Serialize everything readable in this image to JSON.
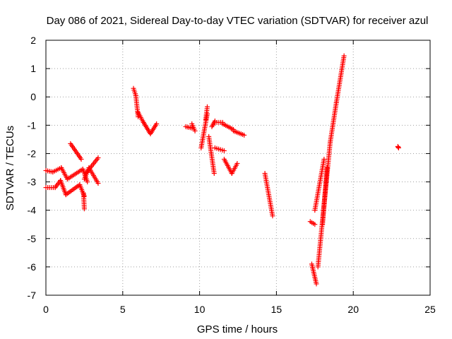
{
  "chart_data": {
    "type": "scatter",
    "title": "Day 086 of 2021, Sidereal Day-to-day VTEC variation (SDTVAR) for receiver azul",
    "xlabel": "GPS time / hours",
    "ylabel": "SDTVAR / TECUs",
    "xlim": [
      0,
      25
    ],
    "ylim": [
      -7,
      2
    ],
    "xticks": [
      0,
      5,
      10,
      15,
      20,
      25
    ],
    "yticks": [
      -7,
      -6,
      -5,
      -4,
      -3,
      -2,
      -1,
      0,
      1,
      2
    ],
    "grid": true,
    "marker": "+",
    "color": "#ff0000",
    "segments": [
      {
        "x0": 0.0,
        "x1": 0.45,
        "y0": -2.6,
        "y1": -2.65
      },
      {
        "x0": 0.45,
        "x1": 1.0,
        "y0": -2.65,
        "y1": -2.5
      },
      {
        "x0": 1.0,
        "x1": 1.4,
        "y0": -2.5,
        "y1": -2.9
      },
      {
        "x0": 1.4,
        "x1": 2.4,
        "y0": -2.9,
        "y1": -2.55
      },
      {
        "x0": 2.4,
        "x1": 2.7,
        "y0": -2.55,
        "y1": -3.0
      },
      {
        "x0": 0.0,
        "x1": 0.6,
        "y0": -3.2,
        "y1": -3.2
      },
      {
        "x0": 0.6,
        "x1": 0.95,
        "y0": -3.2,
        "y1": -2.95
      },
      {
        "x0": 0.95,
        "x1": 1.3,
        "y0": -2.95,
        "y1": -3.45
      },
      {
        "x0": 1.3,
        "x1": 2.2,
        "y0": -3.45,
        "y1": -3.1
      },
      {
        "x0": 2.2,
        "x1": 2.5,
        "y0": -3.1,
        "y1": -3.5
      },
      {
        "x0": 2.45,
        "x1": 2.5,
        "y0": -3.4,
        "y1": -3.95
      },
      {
        "x0": 1.6,
        "x1": 2.3,
        "y0": -1.65,
        "y1": -2.2
      },
      {
        "x0": 2.5,
        "x1": 2.8,
        "y0": -2.9,
        "y1": -2.5
      },
      {
        "x0": 2.6,
        "x1": 3.4,
        "y0": -2.7,
        "y1": -2.15
      },
      {
        "x0": 2.8,
        "x1": 3.4,
        "y0": -2.5,
        "y1": -3.05
      },
      {
        "x0": 5.7,
        "x1": 5.85,
        "y0": 0.3,
        "y1": 0.05
      },
      {
        "x0": 5.85,
        "x1": 6.0,
        "y0": 0.05,
        "y1": -0.7
      },
      {
        "x0": 6.0,
        "x1": 6.35,
        "y0": -0.55,
        "y1": -0.9
      },
      {
        "x0": 6.35,
        "x1": 6.8,
        "y0": -0.9,
        "y1": -1.3
      },
      {
        "x0": 6.8,
        "x1": 7.2,
        "y0": -1.3,
        "y1": -0.95
      },
      {
        "x0": 9.1,
        "x1": 9.5,
        "y0": -1.05,
        "y1": -1.1
      },
      {
        "x0": 9.5,
        "x1": 9.7,
        "y0": -0.95,
        "y1": -1.2
      },
      {
        "x0": 10.1,
        "x1": 10.5,
        "y0": -1.8,
        "y1": -0.6
      },
      {
        "x0": 10.4,
        "x1": 10.5,
        "y0": -0.8,
        "y1": -0.35
      },
      {
        "x0": 10.6,
        "x1": 10.95,
        "y0": -1.4,
        "y1": -2.7
      },
      {
        "x0": 10.8,
        "x1": 11.0,
        "y0": -1.05,
        "y1": -0.85
      },
      {
        "x0": 11.0,
        "x1": 11.5,
        "y0": -0.9,
        "y1": -0.9
      },
      {
        "x0": 11.5,
        "x1": 12.2,
        "y0": -0.95,
        "y1": -1.15
      },
      {
        "x0": 12.2,
        "x1": 12.9,
        "y0": -1.2,
        "y1": -1.35
      },
      {
        "x0": 11.0,
        "x1": 11.6,
        "y0": -1.8,
        "y1": -1.9
      },
      {
        "x0": 11.6,
        "x1": 12.1,
        "y0": -2.2,
        "y1": -2.7
      },
      {
        "x0": 12.1,
        "x1": 12.45,
        "y0": -2.7,
        "y1": -2.35
      },
      {
        "x0": 14.25,
        "x1": 14.75,
        "y0": -2.7,
        "y1": -4.2
      },
      {
        "x0": 17.2,
        "x1": 17.5,
        "y0": -4.4,
        "y1": -4.5
      },
      {
        "x0": 17.3,
        "x1": 17.6,
        "y0": -5.9,
        "y1": -6.6
      },
      {
        "x0": 17.5,
        "x1": 18.1,
        "y0": -4.0,
        "y1": -2.2
      },
      {
        "x0": 17.7,
        "x1": 18.5,
        "y0": -6.0,
        "y1": -1.6
      },
      {
        "x0": 18.0,
        "x1": 18.3,
        "y0": -4.5,
        "y1": -2.5
      },
      {
        "x0": 18.5,
        "x1": 18.9,
        "y0": -1.6,
        "y1": -0.2
      },
      {
        "x0": 18.9,
        "x1": 19.4,
        "y0": -0.2,
        "y1": 1.45
      },
      {
        "x0": 22.9,
        "x1": 22.95,
        "y0": -1.75,
        "y1": -1.8
      }
    ]
  }
}
